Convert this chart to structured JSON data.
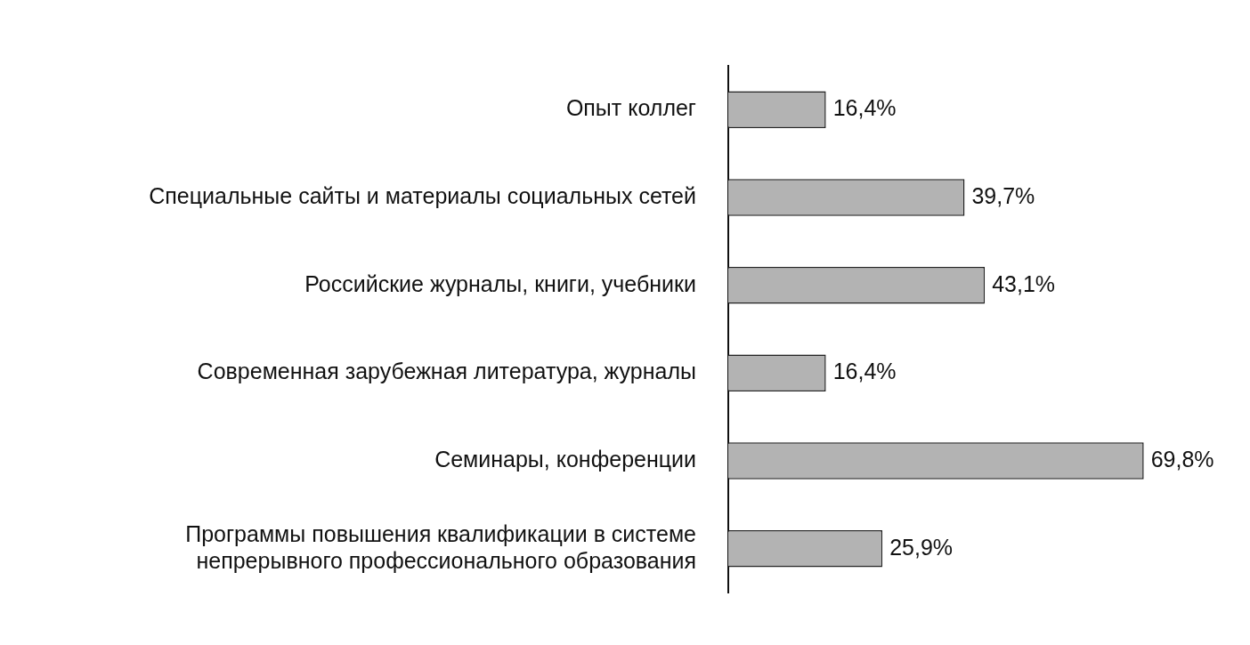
{
  "chart_data": {
    "type": "bar",
    "orientation": "horizontal",
    "categories": [
      "Опыт коллег",
      "Специальные сайты и материалы социальных сетей",
      "Российские журналы, книги, учебники",
      "Современная зарубежная литература, журналы",
      "Семинары, конференции",
      "Программы повышения квалификации в системе непрерывного профессионального образования"
    ],
    "values": [
      16.4,
      39.7,
      43.1,
      16.4,
      69.8,
      25.9
    ],
    "value_labels": [
      "16,4%",
      "39,7%",
      "43,1%",
      "16,4%",
      "69,8%",
      "25,9%"
    ],
    "color": "#b3b3b3",
    "grid": false,
    "legend": false,
    "tick_labels": "y"
  }
}
